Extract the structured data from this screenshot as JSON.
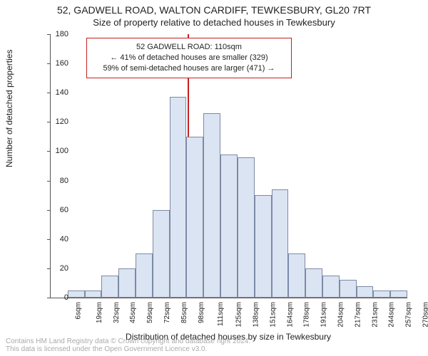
{
  "titles": {
    "line1": "52, GADWELL ROAD, WALTON CARDIFF, TEWKESBURY, GL20 7RT",
    "line2": "Size of property relative to detached houses in Tewkesbury"
  },
  "axes": {
    "xlabel": "Distribution of detached houses by size in Tewkesbury",
    "ylabel": "Number of detached properties",
    "ylim": [
      0,
      180
    ],
    "ytick_step": 20,
    "xtick_labels": [
      "6sqm",
      "19sqm",
      "32sqm",
      "45sqm",
      "59sqm",
      "72sqm",
      "85sqm",
      "98sqm",
      "111sqm",
      "125sqm",
      "138sqm",
      "151sqm",
      "164sqm",
      "178sqm",
      "191sqm",
      "204sqm",
      "217sqm",
      "231sqm",
      "244sqm",
      "257sqm",
      "270sqm"
    ],
    "tick_fontsize": 10,
    "label_fontsize": 12
  },
  "histogram": {
    "type": "histogram",
    "values": [
      0,
      5,
      5,
      15,
      20,
      30,
      60,
      137,
      110,
      126,
      98,
      96,
      70,
      74,
      30,
      20,
      15,
      12,
      8,
      5,
      5
    ],
    "bar_fill": "#dbe4f2",
    "bar_border": "#7c8aa6",
    "bar_width_ratio": 1.0
  },
  "marker": {
    "value_sqm": 110,
    "xindex": 8,
    "line_color": "#c62020"
  },
  "annotation": {
    "line1": "52 GADWELL ROAD: 110sqm",
    "line2": "← 41% of detached houses are smaller (329)",
    "line3": "59% of semi-detached houses are larger (471) →",
    "border_color": "#c62020",
    "fontsize": 11
  },
  "footer": {
    "line1": "Contains HM Land Registry data © Crown copyright and database right 2024.",
    "line2": "This data is licensed under the Open Government Licence v3.0."
  },
  "colors": {
    "background": "#ffffff",
    "text": "#222222",
    "axis": "#555555",
    "footer": "#aaaaaa"
  }
}
